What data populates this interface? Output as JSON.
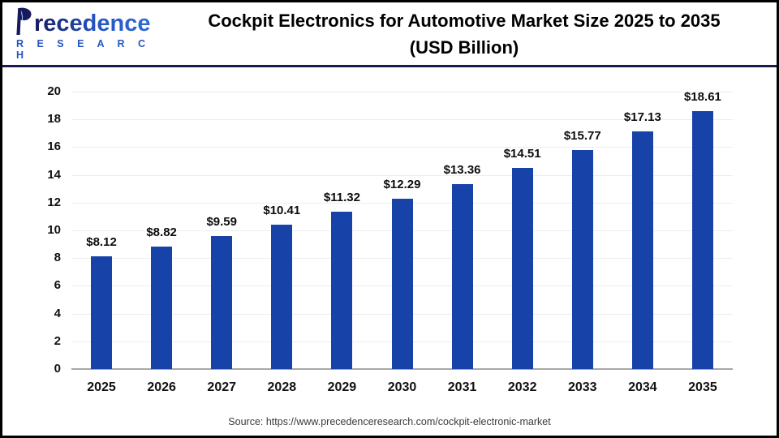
{
  "header": {
    "logo": {
      "line1": "recedence",
      "line2": "R E S E A R C H",
      "icon": "leaf-p-logo"
    },
    "title_line1": "Cockpit Electronics for Automotive Market Size 2025 to 2035",
    "title_line2": "(USD Billion)"
  },
  "chart_data": {
    "type": "bar",
    "title": "Cockpit Electronics for Automotive Market Size 2025 to 2035 (USD Billion)",
    "categories": [
      "2025",
      "2026",
      "2027",
      "2028",
      "2029",
      "2030",
      "2031",
      "2032",
      "2033",
      "2034",
      "2035"
    ],
    "values": [
      8.12,
      8.82,
      9.59,
      10.41,
      11.32,
      12.29,
      13.36,
      14.51,
      15.77,
      17.13,
      18.61
    ],
    "value_labels": [
      "$8.12",
      "$8.82",
      "$9.59",
      "$10.41",
      "$11.32",
      "$12.29",
      "$13.36",
      "$14.51",
      "$15.77",
      "$17.13",
      "$18.61"
    ],
    "xlabel": "",
    "ylabel": "",
    "ylim": [
      0,
      20
    ],
    "ytick_step": 2,
    "ytick_labels": [
      "0",
      "2",
      "4",
      "6",
      "8",
      "10",
      "12",
      "14",
      "16",
      "18",
      "20"
    ],
    "grid": true,
    "legend": "none",
    "bar_color": "#1743a9",
    "grid_color": "#ededed",
    "baseline_color": "#a8a8a8"
  },
  "footer": {
    "source": "Source: https://www.precedenceresearch.com/cockpit-electronic-market"
  },
  "colors": {
    "accent_navy": "#1b1b4d",
    "logo_blue": "#2456c4",
    "logo_dark": "#171a5e",
    "border": "#000000",
    "background": "#ffffff"
  }
}
